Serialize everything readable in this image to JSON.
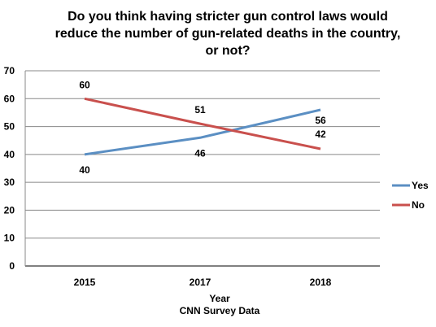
{
  "chart_data": {
    "type": "line",
    "title_lines": [
      "Do you think having stricter gun control laws would",
      "reduce the number of gun-related deaths in the country,",
      "or not?"
    ],
    "categories": [
      "2015",
      "2017",
      "2018"
    ],
    "series": [
      {
        "name": "Yes",
        "values": [
          40,
          46,
          56
        ],
        "color": "#5b8fc3"
      },
      {
        "name": "No",
        "values": [
          60,
          51,
          42
        ],
        "color": "#c9504d"
      }
    ],
    "xlabel": "Year",
    "source": "CNN Survey Data",
    "ylim": [
      0,
      70
    ],
    "yticks": [
      0,
      10,
      20,
      30,
      40,
      50,
      60,
      70
    ],
    "grid": true,
    "legend": "right",
    "gridline_color": "#888888"
  }
}
